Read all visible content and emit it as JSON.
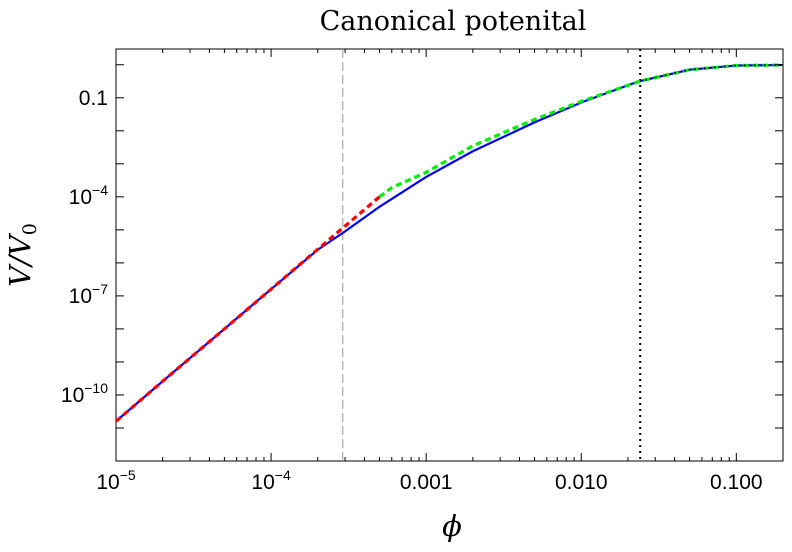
{
  "chart_data": {
    "type": "line",
    "title": "Canonical potenital",
    "xlabel": "ϕ",
    "ylabel": "V/V0",
    "ylabel_parts": {
      "main": "V/V",
      "sub": "0"
    },
    "xscale": "log",
    "yscale": "log",
    "xlim": [
      1e-05,
      0.2
    ],
    "ylim": [
      1e-12,
      3
    ],
    "x_ticks": [
      {
        "value": 1e-05,
        "base": "10",
        "exp": "−5"
      },
      {
        "value": 0.0001,
        "base": "10",
        "exp": "−4"
      },
      {
        "value": 0.001,
        "label": "0.001"
      },
      {
        "value": 0.01,
        "label": "0.010"
      },
      {
        "value": 0.1,
        "label": "0.100"
      }
    ],
    "y_ticks": [
      {
        "value": 1e-10,
        "base": "10",
        "exp": "−10"
      },
      {
        "value": 1e-07,
        "base": "10",
        "exp": "−7"
      },
      {
        "value": 0.0001,
        "base": "10",
        "exp": "−4"
      },
      {
        "value": 0.1,
        "label": "0.1"
      }
    ],
    "series": [
      {
        "color": "#0000ff",
        "style": "solid",
        "x": [
          1e-05,
          2e-05,
          5e-05,
          0.0001,
          0.0002,
          0.0003,
          0.0005,
          0.001,
          0.002,
          0.005,
          0.01,
          0.02,
          0.024,
          0.05,
          0.1,
          0.2
        ],
        "y": [
          1.6e-11,
          2.6e-10,
          1e-08,
          1.6e-07,
          2.5e-06,
          9e-06,
          5e-05,
          0.0004,
          0.0024,
          0.018,
          0.072,
          0.24,
          0.32,
          0.71,
          0.95,
          0.98
        ]
      },
      {
        "color": "#ff0000",
        "style": "dashed",
        "x": [
          1e-05,
          2e-05,
          5e-05,
          0.0001,
          0.0002,
          0.0003,
          0.0005
        ],
        "y": [
          1.6e-11,
          2.6e-10,
          1e-08,
          1.6e-07,
          2.6e-06,
          1.3e-05,
          0.0001
        ]
      },
      {
        "color": "#00ee00",
        "style": "dashed",
        "x": [
          0.0005,
          0.0006,
          0.001,
          0.002,
          0.005,
          0.01,
          0.024,
          0.05,
          0.1,
          0.2
        ],
        "y": [
          0.0001,
          0.00019,
          0.00055,
          0.0035,
          0.022,
          0.078,
          0.32,
          0.71,
          0.95,
          0.98
        ]
      },
      {
        "color": "#000080",
        "style": "dotted",
        "x": [
          0.024,
          0.05,
          0.1,
          0.2
        ],
        "y": [
          0.32,
          0.71,
          0.95,
          0.98
        ]
      }
    ],
    "vertical_lines": [
      {
        "x": 0.00029,
        "color": "#999999",
        "style": "dashed"
      },
      {
        "x": 0.024,
        "color": "#000000",
        "style": "dotted"
      }
    ],
    "grid": false,
    "legend": "none"
  }
}
